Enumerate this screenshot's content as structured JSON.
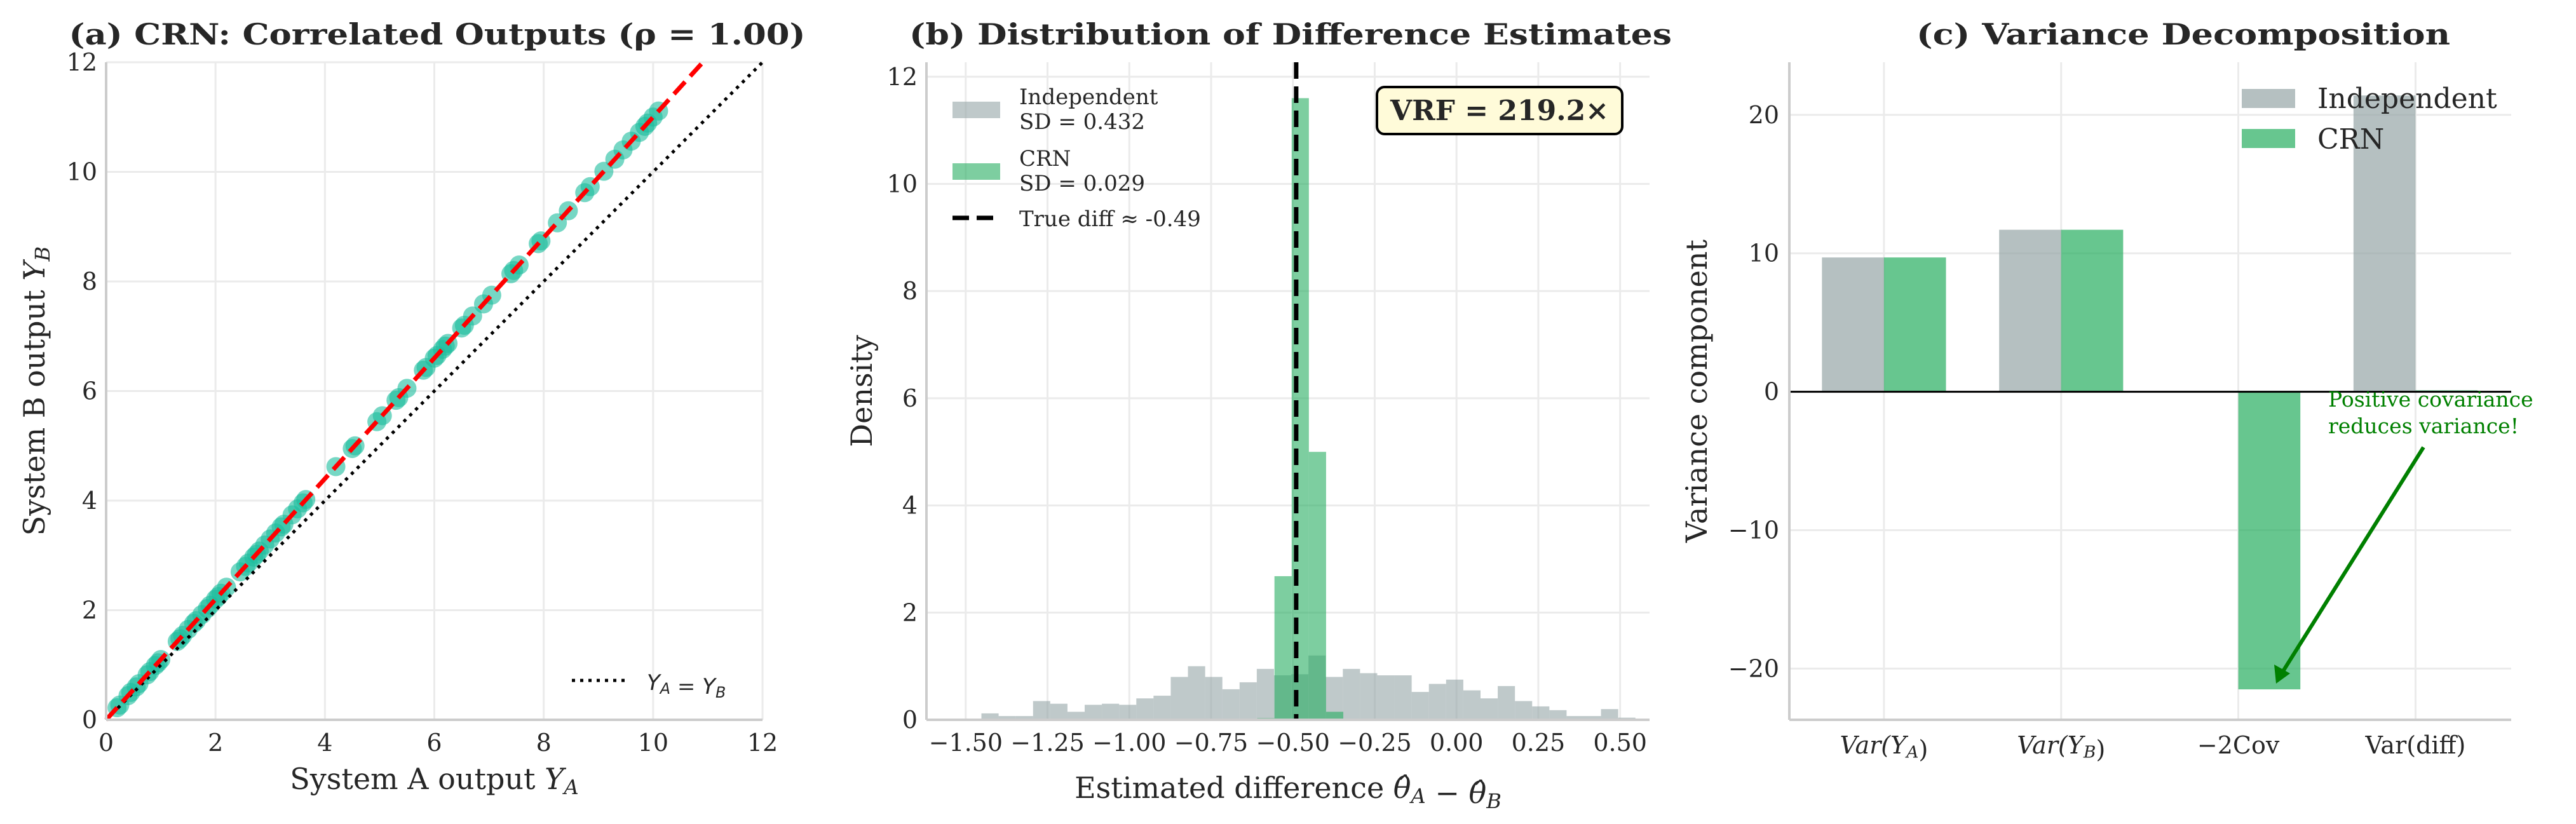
{
  "chart_data": [
    {
      "type": "scatter",
      "title": "(a) CRN: Correlated Outputs (ρ = 1.00)",
      "xlabel": "System A output Y_A",
      "ylabel": "System B output Y_B",
      "xlim": [
        0,
        12
      ],
      "ylim": [
        0,
        12
      ],
      "xticks": [
        0,
        2,
        4,
        6,
        8,
        10,
        12
      ],
      "yticks": [
        0,
        2,
        4,
        6,
        8,
        10,
        12
      ],
      "grid": true,
      "point_color": "#1abc9c",
      "fit_line": {
        "slope": 1.1,
        "intercept": 0,
        "color": "#ff0000",
        "style": "dashed"
      },
      "identity_line": {
        "label": "Y_A = Y_B",
        "color": "#000000",
        "style": "dotted"
      },
      "legend_placement": "lower-right",
      "points": [
        [
          0.2,
          0.22
        ],
        [
          0.25,
          0.27
        ],
        [
          0.4,
          0.44
        ],
        [
          0.45,
          0.5
        ],
        [
          0.55,
          0.6
        ],
        [
          0.6,
          0.66
        ],
        [
          0.75,
          0.82
        ],
        [
          0.8,
          0.88
        ],
        [
          0.9,
          0.99
        ],
        [
          0.95,
          1.04
        ],
        [
          1.0,
          1.1
        ],
        [
          1.3,
          1.43
        ],
        [
          1.35,
          1.48
        ],
        [
          1.4,
          1.54
        ],
        [
          1.5,
          1.65
        ],
        [
          1.6,
          1.76
        ],
        [
          1.65,
          1.81
        ],
        [
          1.75,
          1.92
        ],
        [
          1.85,
          2.03
        ],
        [
          1.9,
          2.09
        ],
        [
          2.0,
          2.2
        ],
        [
          2.05,
          2.25
        ],
        [
          2.1,
          2.31
        ],
        [
          2.2,
          2.42
        ],
        [
          2.45,
          2.7
        ],
        [
          2.55,
          2.8
        ],
        [
          2.6,
          2.86
        ],
        [
          2.7,
          2.97
        ],
        [
          2.75,
          3.02
        ],
        [
          2.8,
          3.08
        ],
        [
          2.9,
          3.19
        ],
        [
          3.0,
          3.3
        ],
        [
          3.1,
          3.41
        ],
        [
          3.2,
          3.52
        ],
        [
          3.25,
          3.57
        ],
        [
          3.4,
          3.74
        ],
        [
          3.5,
          3.85
        ],
        [
          3.6,
          3.96
        ],
        [
          3.65,
          4.02
        ],
        [
          4.2,
          4.62
        ],
        [
          4.5,
          4.95
        ],
        [
          4.55,
          5.0
        ],
        [
          4.95,
          5.44
        ],
        [
          5.05,
          5.55
        ],
        [
          5.3,
          5.83
        ],
        [
          5.35,
          5.88
        ],
        [
          5.5,
          6.05
        ],
        [
          5.8,
          6.38
        ],
        [
          5.85,
          6.43
        ],
        [
          6.0,
          6.6
        ],
        [
          6.05,
          6.65
        ],
        [
          6.15,
          6.76
        ],
        [
          6.2,
          6.82
        ],
        [
          6.25,
          6.87
        ],
        [
          6.5,
          7.15
        ],
        [
          6.55,
          7.2
        ],
        [
          6.7,
          7.37
        ],
        [
          6.9,
          7.59
        ],
        [
          7.05,
          7.75
        ],
        [
          7.4,
          8.14
        ],
        [
          7.45,
          8.2
        ],
        [
          7.55,
          8.3
        ],
        [
          7.9,
          8.69
        ],
        [
          7.95,
          8.74
        ],
        [
          8.25,
          9.07
        ],
        [
          8.45,
          9.29
        ],
        [
          8.75,
          9.62
        ],
        [
          8.85,
          9.73
        ],
        [
          9.1,
          10.01
        ],
        [
          9.3,
          10.23
        ],
        [
          9.45,
          10.4
        ],
        [
          9.6,
          10.56
        ],
        [
          9.75,
          10.72
        ],
        [
          9.85,
          10.83
        ],
        [
          9.9,
          10.89
        ],
        [
          10.0,
          11.0
        ],
        [
          10.1,
          11.11
        ]
      ]
    },
    {
      "type": "histogram",
      "title": "(b) Distribution of Difference Estimates",
      "xlabel": "Estimated difference θ̂_A − θ̂_B",
      "ylabel": "Density",
      "xlim": [
        -1.62,
        0.59
      ],
      "ylim": [
        0,
        12.27
      ],
      "xticks": [
        -1.5,
        -1.25,
        -1.0,
        -0.75,
        -0.5,
        -0.25,
        0.0,
        0.25,
        0.5
      ],
      "xtick_labels": [
        "−1.50",
        "−1.25",
        "−1.00",
        "−0.75",
        "−0.50",
        "−0.25",
        "0.00",
        "0.25",
        "0.50"
      ],
      "yticks": [
        0,
        2,
        4,
        6,
        8,
        10,
        12
      ],
      "grid": true,
      "legend_placement": "upper-left",
      "series": [
        {
          "name": "Independent",
          "sd_label": "SD = 0.432",
          "color": "#95a5a6",
          "bin_start": -1.452,
          "bin_width": 0.0526,
          "values": [
            0.12,
            0.07,
            0.07,
            0.35,
            0.3,
            0.15,
            0.28,
            0.3,
            0.28,
            0.4,
            0.45,
            0.8,
            1.0,
            0.8,
            0.57,
            0.7,
            0.95,
            0.83,
            0.85,
            1.2,
            0.8,
            0.95,
            0.87,
            0.83,
            0.83,
            0.52,
            0.67,
            0.75,
            0.55,
            0.4,
            0.63,
            0.35,
            0.25,
            0.18,
            0.07,
            0.07,
            0.2,
            0.04
          ]
        },
        {
          "name": "CRN",
          "sd_label": "SD = 0.029",
          "color": "#27ae60",
          "bin_start": -0.609,
          "bin_width": 0.0526,
          "values": [
            0.03,
            2.68,
            11.6,
            5.0,
            0.15
          ]
        }
      ],
      "true_diff": {
        "value": -0.49,
        "label": "True diff ≈ -0.49"
      },
      "annotation": "VRF = 219.2×",
      "annotation_bg": "#fffbd9"
    },
    {
      "type": "bar",
      "title": "(c) Variance Decomposition",
      "ylabel": "Variance component",
      "categories": [
        "Var(Y_A)",
        "Var(Y_B)",
        "−2Cov",
        "Var(diff)"
      ],
      "ylim": [
        -23.7,
        23.8
      ],
      "yticks": [
        -20,
        -10,
        0,
        10,
        20
      ],
      "ytick_labels": [
        "−20",
        "−10",
        "0",
        "10",
        "20"
      ],
      "grid": true,
      "legend_placement": "upper-right",
      "series": [
        {
          "name": "Independent",
          "color": "#95a5a6",
          "values": [
            9.7,
            11.7,
            0,
            21.4
          ]
        },
        {
          "name": "CRN",
          "color": "#27ae60",
          "values": [
            9.7,
            11.7,
            -21.5,
            0.1
          ]
        }
      ],
      "annotation": {
        "lines": [
          "Positive covariance",
          "reduces variance!"
        ],
        "color": "#008000",
        "points_to": "−2Cov CRN bar"
      }
    }
  ]
}
